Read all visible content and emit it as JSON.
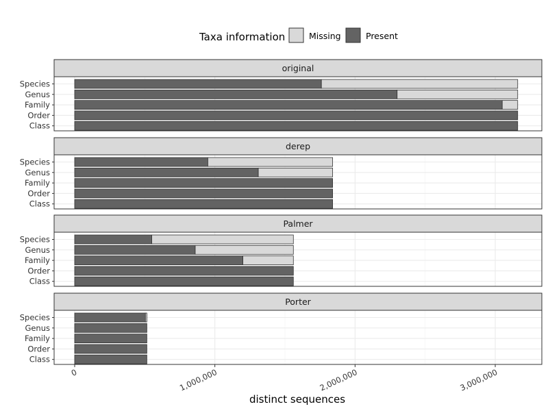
{
  "chart_data": {
    "type": "bar",
    "orientation": "horizontal",
    "stacked": true,
    "title": "",
    "xlabel": "distinct sequences",
    "ylabel": "",
    "xlim": [
      0,
      3300000
    ],
    "x_ticks": [
      0,
      1000000,
      2000000,
      3000000
    ],
    "x_tick_labels": [
      "0",
      "1,000,000",
      "2,000,000",
      "3,000,000"
    ],
    "categories": [
      "Species",
      "Genus",
      "Family",
      "Order",
      "Class"
    ],
    "legend": {
      "title": "Taxa information",
      "placement": "top",
      "entries": [
        {
          "label": "Missing",
          "color": "#d9d9d9"
        },
        {
          "label": "Present",
          "color": "#636363"
        }
      ]
    },
    "grid": true,
    "panels": [
      {
        "name": "original",
        "present": [
          1760000,
          2300000,
          3050000,
          3160000,
          3160000
        ],
        "missing": [
          1400000,
          860000,
          110000,
          0,
          0
        ]
      },
      {
        "name": "derep",
        "present": [
          950000,
          1310000,
          1840000,
          1840000,
          1840000
        ],
        "missing": [
          890000,
          530000,
          0,
          0,
          0
        ]
      },
      {
        "name": "Palmer",
        "present": [
          550000,
          860000,
          1200000,
          1560000,
          1560000
        ],
        "missing": [
          1010000,
          700000,
          360000,
          0,
          0
        ]
      },
      {
        "name": "Porter",
        "present": [
          505000,
          515000,
          515000,
          515000,
          515000
        ],
        "missing": [
          10000,
          0,
          0,
          0,
          0
        ]
      }
    ]
  }
}
